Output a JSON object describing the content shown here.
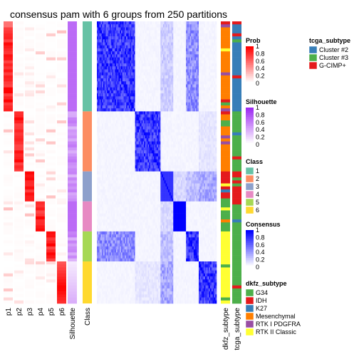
{
  "chart_data": {
    "type": "heatmap",
    "title": "consensus pam with 6 groups from 250 partitions",
    "prob_columns": [
      "p1",
      "p2",
      "p3",
      "p4",
      "p5",
      "p6"
    ],
    "annotation_columns": [
      "Silhouette",
      "Class"
    ],
    "right_annotation_columns": [
      "dkfz_subtype",
      "tcga_subtype"
    ],
    "class_groups": [
      {
        "class": "1",
        "color": "#66C2A5",
        "size": 30
      },
      {
        "class": "2",
        "color": "#FC8D62",
        "size": 20
      },
      {
        "class": "3",
        "color": "#8DA0CB",
        "size": 10
      },
      {
        "class": "4",
        "color": "#E78AC3",
        "size": 10
      },
      {
        "class": "5",
        "color": "#A6D854",
        "size": 10
      },
      {
        "class": "6",
        "color": "#FFD92F",
        "size": 14
      }
    ],
    "legends": {
      "prob": {
        "title": "Prob",
        "ticks": [
          "1",
          "0.8",
          "0.6",
          "0.4",
          "0.2",
          "0"
        ],
        "low": "#FFFFFF",
        "high": "#FF0000"
      },
      "silhouette": {
        "title": "Silhouette",
        "ticks": [
          "1",
          "0.8",
          "0.6",
          "0.4",
          "0.2",
          "0"
        ],
        "low": "#FFFFFF",
        "high": "#9E2BF2"
      },
      "class": {
        "title": "Class",
        "items": [
          {
            "label": "1",
            "color": "#66C2A5"
          },
          {
            "label": "2",
            "color": "#FC8D62"
          },
          {
            "label": "3",
            "color": "#8DA0CB"
          },
          {
            "label": "4",
            "color": "#E78AC3"
          },
          {
            "label": "5",
            "color": "#A6D854"
          },
          {
            "label": "6",
            "color": "#FFD92F"
          }
        ]
      },
      "consensus": {
        "title": "Consensus",
        "ticks": [
          "1",
          "0.8",
          "0.6",
          "0.4",
          "0.2",
          "0"
        ],
        "low": "#FFFFFF",
        "high": "#0000FF"
      },
      "dkfz_subtype": {
        "title": "dkfz_subtype",
        "items": [
          {
            "label": "G34",
            "color": "#4DAF4A"
          },
          {
            "label": "IDH",
            "color": "#E41A1C"
          },
          {
            "label": "K27",
            "color": "#377EB8"
          },
          {
            "label": "Mesenchymal",
            "color": "#FF7F00"
          },
          {
            "label": "RTK I PDGFRA",
            "color": "#984EA3"
          },
          {
            "label": "RTK II Classic",
            "color": "#FFFF33"
          }
        ]
      },
      "tcga_subtype": {
        "title": "tcga_subtype",
        "items": [
          {
            "label": "Cluster #2",
            "color": "#377EB8"
          },
          {
            "label": "Cluster #3",
            "color": "#4DAF4A"
          },
          {
            "label": "G-CIMP+",
            "color": "#E41A1C"
          }
        ]
      }
    }
  }
}
